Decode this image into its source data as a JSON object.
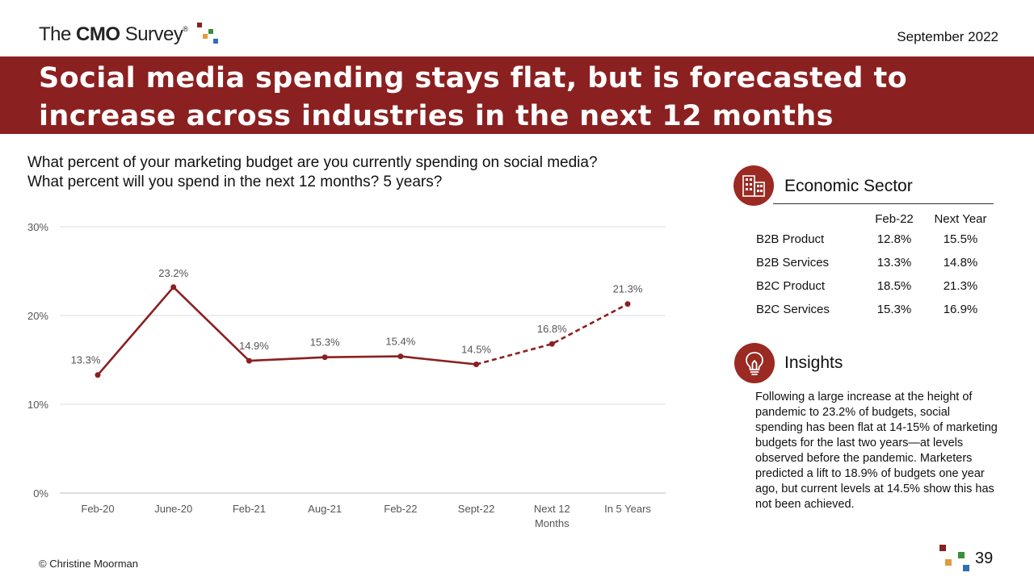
{
  "header": {
    "logo_pre": "The ",
    "logo_bold": "CMO",
    "logo_post": " Survey",
    "logo_reg": "®",
    "date": "September 2022",
    "title": "Social media spending stays flat, but is forecasted to increase across industries in the next 12 months"
  },
  "question": {
    "line1": "What percent of your marketing budget are you currently spending on social media?",
    "line2": "What percent will you spend in the next 12 months? 5 years?"
  },
  "chart_data": {
    "type": "line",
    "categories": [
      "Feb-20",
      "June-20",
      "Feb-21",
      "Aug-21",
      "Feb-22",
      "Sept-22",
      "Next 12 Months",
      "In 5 Years"
    ],
    "values": [
      13.3,
      23.2,
      14.9,
      15.3,
      15.4,
      14.5,
      16.8,
      21.3
    ],
    "data_labels": [
      "13.3%",
      "23.2%",
      "14.9%",
      "15.3%",
      "15.4%",
      "14.5%",
      "16.8%",
      "21.3%"
    ],
    "solid_through_index": 5,
    "dashed_from_index": 5,
    "ylim": [
      0,
      30
    ],
    "yticks": [
      0,
      10,
      20,
      30
    ],
    "ytick_labels": [
      "0%",
      "10%",
      "20%",
      "30%"
    ],
    "grid": true,
    "color": "#8b2020"
  },
  "sector": {
    "title": "Economic Sector",
    "columns": [
      "",
      "Feb-22",
      "Next Year"
    ],
    "rows": [
      [
        "B2B Product",
        "12.8%",
        "15.5%"
      ],
      [
        "B2B Services",
        "13.3%",
        "14.8%"
      ],
      [
        "B2C Product",
        "18.5%",
        "21.3%"
      ],
      [
        "B2C Services",
        "15.3%",
        "16.9%"
      ]
    ]
  },
  "insights": {
    "title": "Insights",
    "text": "Following a large increase at the height of pandemic to 23.2% of budgets, social spending has been flat at 14-15% of marketing budgets for the last two years—at levels observed before the pandemic. Marketers predicted a lift to 18.9% of budgets one year ago, but current levels at 14.5% show this has not been achieved."
  },
  "footer": {
    "copyright": "© Christine Moorman",
    "page": "39"
  },
  "colors": {
    "banner": "#8b2020",
    "line": "#8b2020",
    "logo_squares": [
      "#8b2020",
      "#e39a3b",
      "#3a8f3a",
      "#2f6fb5"
    ]
  }
}
